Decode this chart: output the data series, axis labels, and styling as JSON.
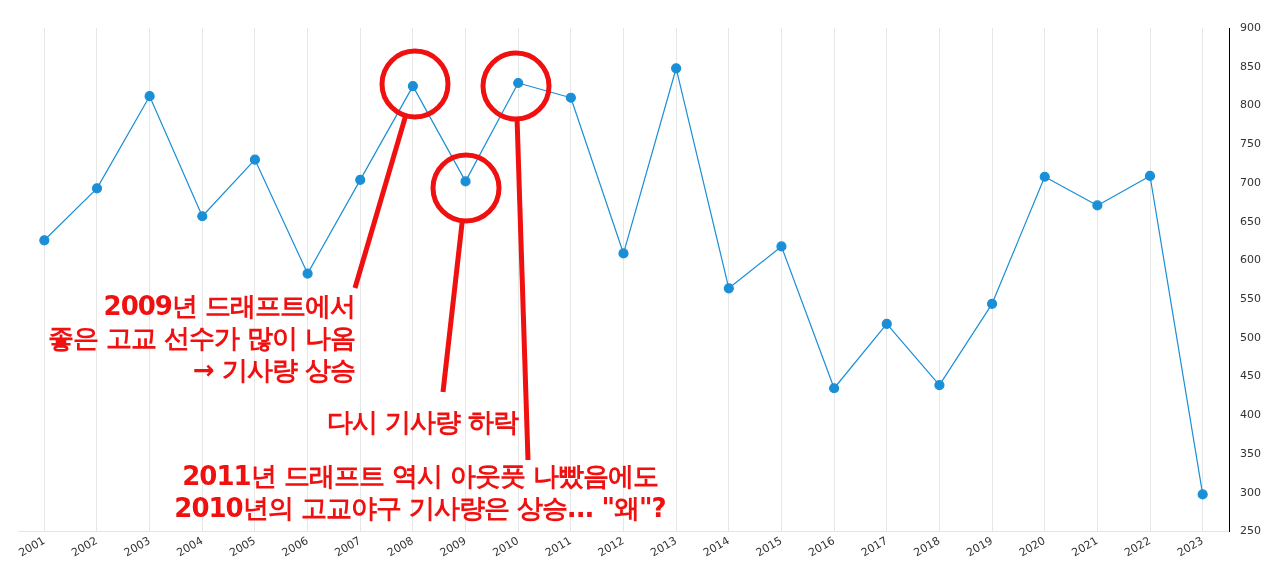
{
  "chart_data": {
    "type": "line",
    "categories": [
      "2001",
      "2002",
      "2003",
      "2004",
      "2005",
      "2006",
      "2007",
      "2008",
      "2009",
      "2010",
      "2011",
      "2012",
      "2013",
      "2014",
      "2015",
      "2016",
      "2017",
      "2018",
      "2019",
      "2020",
      "2021",
      "2022",
      "2023"
    ],
    "series": [
      {
        "color": "#1a8fd6",
        "values": [
          626,
          693,
          812,
          657,
          730,
          583,
          704,
          825,
          702,
          829,
          810,
          609,
          848,
          564,
          618,
          435,
          518,
          439,
          544,
          708,
          671,
          709,
          298
        ]
      }
    ],
    "ylim": [
      250,
      900
    ],
    "yticks": [
      250,
      300,
      350,
      400,
      450,
      500,
      550,
      600,
      650,
      700,
      750,
      800,
      850,
      900
    ],
    "grid": "x",
    "legend": false,
    "marker": "circle",
    "line_style": "solid",
    "annotations": [
      "2009년 드래프트에서\n좋은 고교 선수가 많이 나옴\n→ 기사량 상승",
      "다시 기사량 하락",
      "2011년 드래프트 역시 아웃풋 나빴음에도\n2010년의 고교야구 기사량은 상승... \"왜\"?"
    ]
  }
}
